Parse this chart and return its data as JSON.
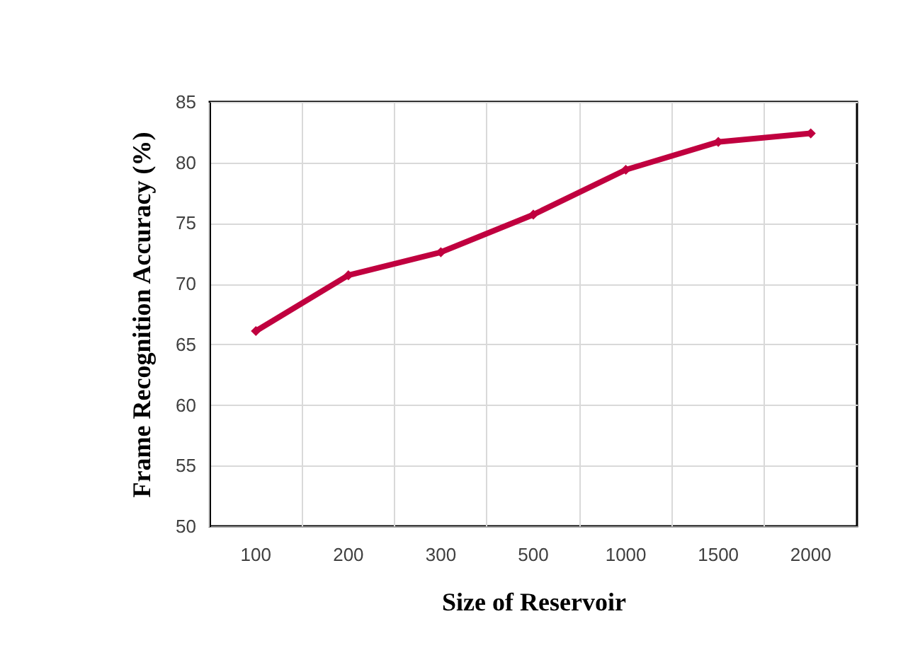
{
  "chart_data": {
    "type": "line",
    "xlabel": "Size of Reservoir",
    "ylabel": "Frame Recognition Accuracy (%)",
    "categories": [
      "100",
      "200",
      "300",
      "500",
      "1000",
      "1500",
      "2000"
    ],
    "series": [
      {
        "color": "#c0003f",
        "values": [
          66.1,
          70.7,
          72.6,
          75.7,
          79.4,
          81.7,
          82.4
        ]
      }
    ],
    "ylim": [
      50,
      85
    ],
    "yticks": [
      50,
      55,
      60,
      65,
      70,
      75,
      80,
      85
    ],
    "grid": true,
    "marker": "diamond",
    "line_style": "solid"
  }
}
